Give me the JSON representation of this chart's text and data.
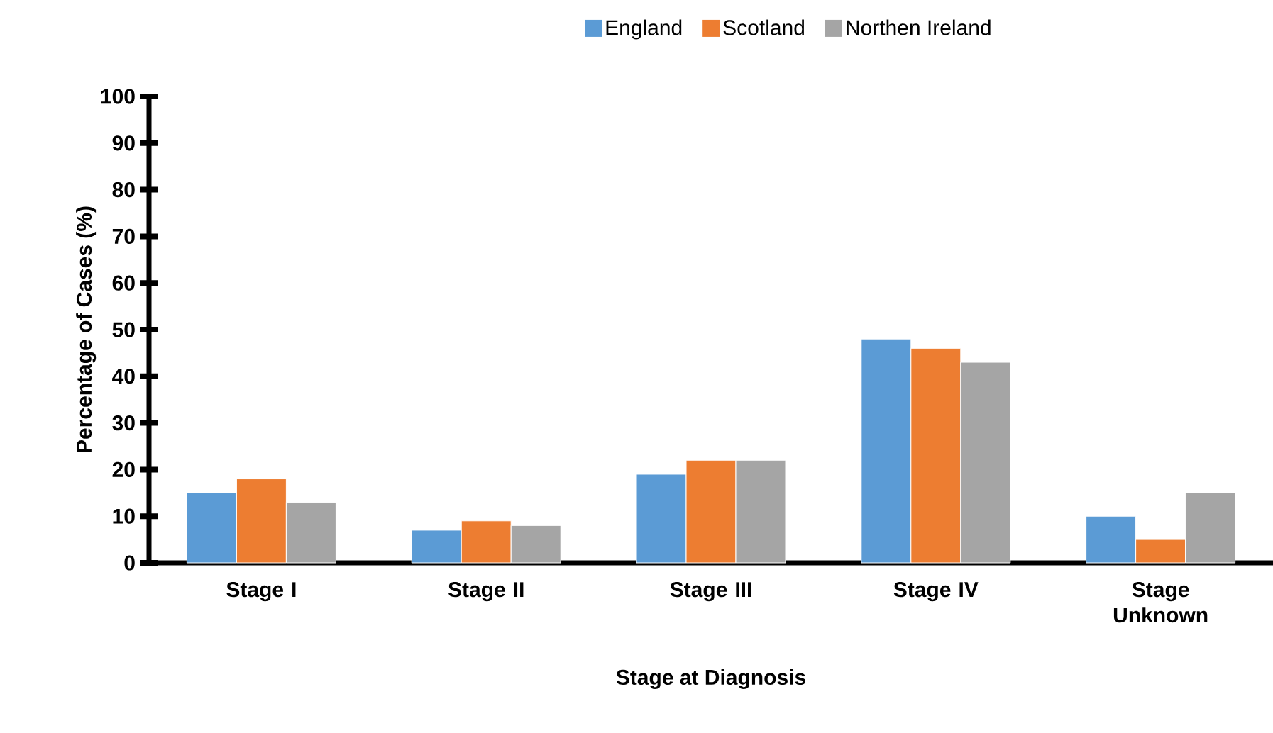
{
  "chart_data": {
    "type": "bar",
    "xlabel": "Stage at Diagnosis",
    "ylabel": "Percentage of Cases (%)",
    "categories": [
      "Stage I",
      "Stage II",
      "Stage III",
      "Stage IV",
      "Stage Unknown"
    ],
    "series": [
      {
        "name": "England",
        "color": "#5b9bd5",
        "values": [
          15,
          7,
          19,
          48,
          10
        ]
      },
      {
        "name": "Scotland",
        "color": "#ed7d31",
        "values": [
          18,
          9,
          22,
          46,
          5
        ]
      },
      {
        "name": "Northen Ireland",
        "color": "#a5a5a5",
        "values": [
          13,
          8,
          22,
          43,
          15
        ]
      }
    ],
    "ylim": [
      0,
      100
    ],
    "yticks": [
      0,
      10,
      20,
      30,
      40,
      50,
      60,
      70,
      80,
      90,
      100
    ],
    "legend": "top"
  }
}
